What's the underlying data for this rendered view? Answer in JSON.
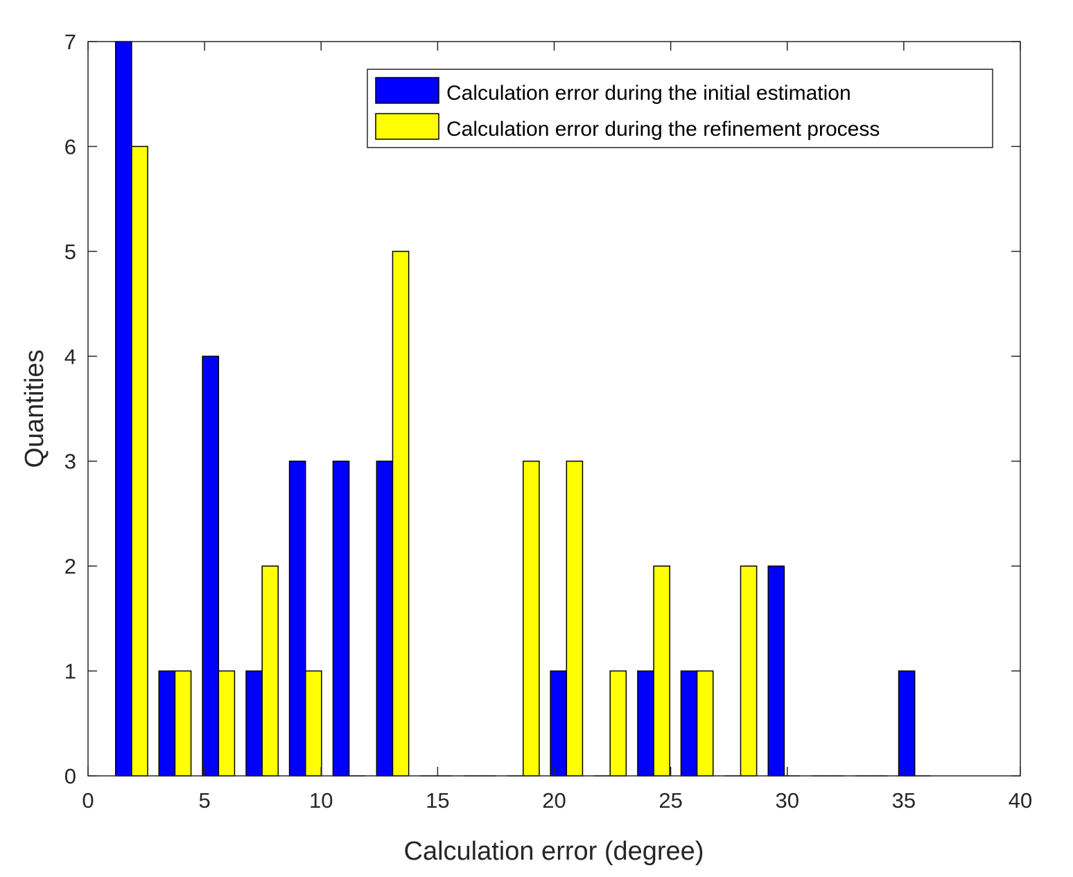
{
  "chart_data": {
    "type": "bar",
    "title": "",
    "xlabel": "Calculation error (degree)",
    "ylabel": "Quantities",
    "xlim": [
      0,
      40
    ],
    "ylim": [
      0,
      7
    ],
    "xticks": [
      "0",
      "5",
      "10",
      "15",
      "20",
      "25",
      "30",
      "35",
      "40"
    ],
    "yticks": [
      "0",
      "1",
      "2",
      "3",
      "4",
      "5",
      "6",
      "7"
    ],
    "grid": false,
    "legend_location": "top-right",
    "x": [
      1.87,
      3.73,
      5.6,
      7.47,
      9.33,
      11.2,
      13.07,
      14.93,
      16.8,
      18.67,
      20.53,
      22.4,
      24.27,
      26.13,
      28.0,
      29.87,
      31.73,
      33.6,
      35.47
    ],
    "series": [
      {
        "name": "Calculation error during the initial estimation",
        "color": "#0000ff",
        "values": [
          7,
          1,
          4,
          1,
          3,
          3,
          3,
          0,
          0,
          0,
          1,
          0,
          1,
          1,
          0,
          2,
          0,
          0,
          1
        ]
      },
      {
        "name": "Calculation error during the refinement process",
        "color": "#ffff00",
        "values": [
          6,
          1,
          1,
          2,
          1,
          0,
          5,
          0,
          0,
          3,
          3,
          1,
          2,
          1,
          2,
          0,
          0,
          0,
          0
        ]
      }
    ]
  }
}
